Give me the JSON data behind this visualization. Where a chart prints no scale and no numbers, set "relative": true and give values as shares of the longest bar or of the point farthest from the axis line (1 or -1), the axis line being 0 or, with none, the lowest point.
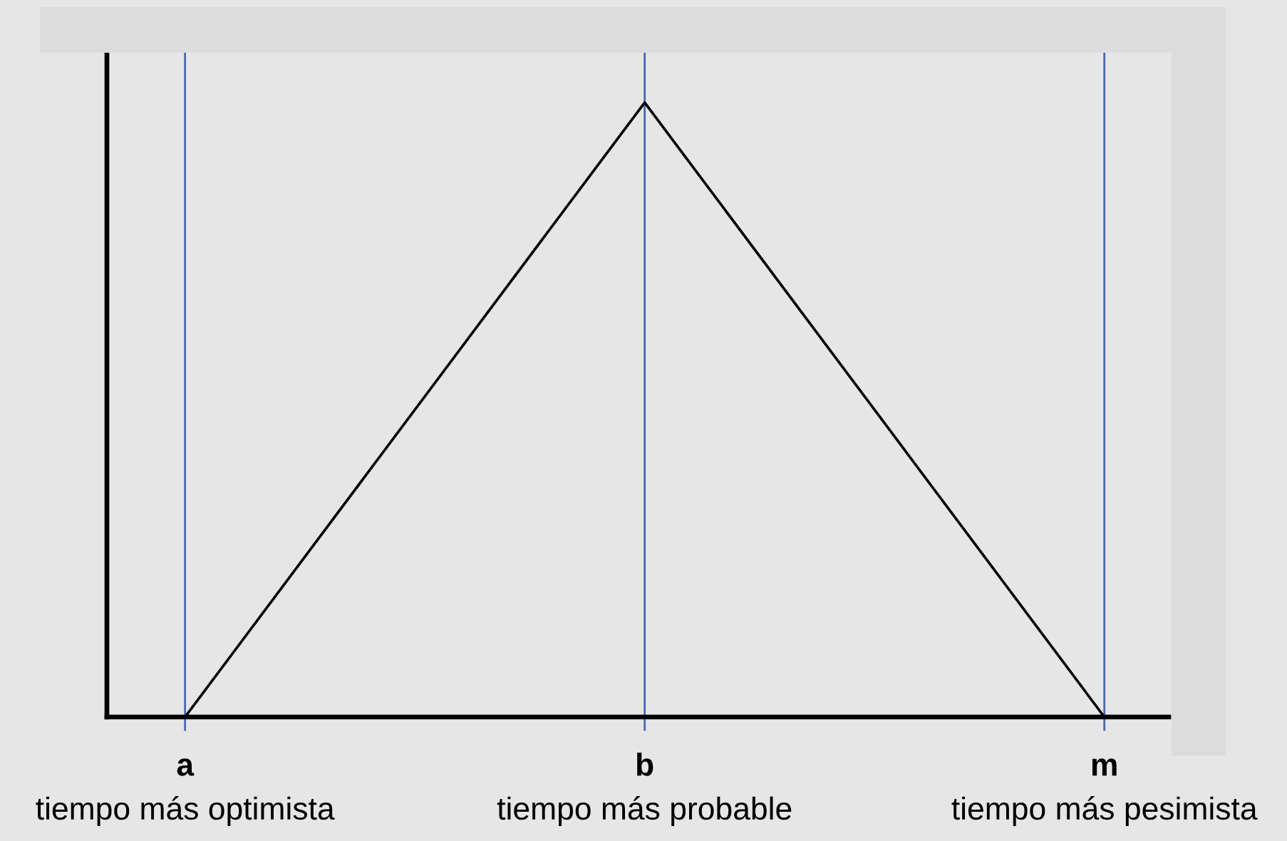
{
  "chart_data": {
    "type": "line",
    "relative": true,
    "categories": [
      "a\ntiempo más optimista",
      "b\ntiempo más probable",
      "m\ntiempo más pesimista"
    ],
    "values": [
      0,
      1,
      0
    ],
    "color": "#000000",
    "grid": "x",
    "tick_labels": "x"
  }
}
